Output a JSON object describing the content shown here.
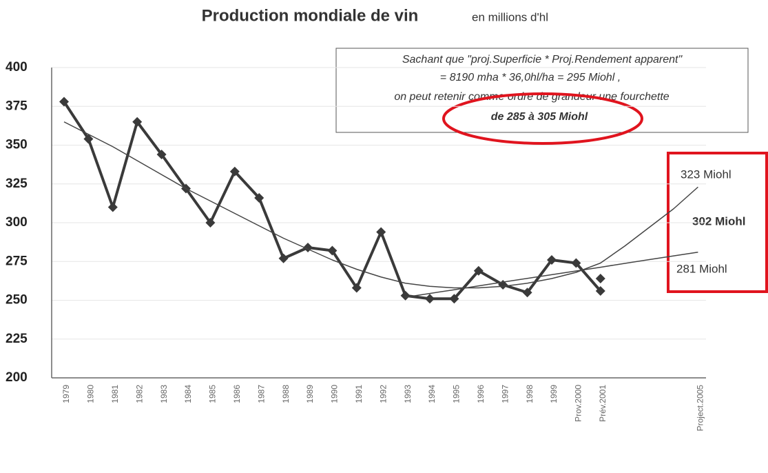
{
  "chart_data": {
    "type": "line",
    "title": "Production mondiale de vin",
    "subtitle": "en millions d'hl",
    "categories": [
      "1979",
      "1980",
      "1981",
      "1982",
      "1983",
      "1984",
      "1985",
      "1986",
      "1987",
      "1988",
      "1989",
      "1990",
      "1991",
      "1992",
      "1993",
      "1994",
      "1995",
      "1996",
      "1997",
      "1998",
      "1999",
      "Prov.2000",
      "Prév.2001",
      null,
      null,
      null,
      "Project.2005"
    ],
    "series": [
      {
        "color": "#3a3a3a",
        "marker": true,
        "width": 4,
        "values": [
          378,
          354,
          310,
          365,
          344,
          322,
          300,
          333,
          316,
          277,
          284,
          282,
          258,
          294,
          253,
          251,
          251,
          269,
          260,
          255,
          276,
          274,
          256,
          null,
          null,
          null,
          null
        ]
      },
      {
        "color": "#3a3a3a",
        "marker": true,
        "width": 4,
        "values": [
          null,
          null,
          null,
          null,
          null,
          null,
          null,
          null,
          null,
          null,
          null,
          null,
          null,
          null,
          null,
          null,
          null,
          null,
          null,
          null,
          null,
          null,
          264,
          null,
          null,
          null,
          null
        ]
      },
      {
        "color": "#444444",
        "marker": false,
        "width": 1.5,
        "values": [
          365,
          357,
          349,
          340,
          331,
          322,
          314,
          306,
          298,
          290,
          283,
          276,
          270,
          265,
          261,
          259,
          258,
          258,
          259,
          261,
          264,
          268,
          274,
          285,
          297,
          309,
          323
        ]
      },
      {
        "color": "#444444",
        "marker": false,
        "width": 1.5,
        "values": [
          null,
          null,
          null,
          null,
          null,
          null,
          null,
          null,
          null,
          null,
          null,
          null,
          null,
          null,
          252,
          254.4,
          256.8,
          259.3,
          261.7,
          264.1,
          266.5,
          268.9,
          271.3,
          273.8,
          276.2,
          278.6,
          281
        ]
      }
    ],
    "ylim": [
      200,
      400
    ],
    "yticks": [
      200,
      225,
      250,
      275,
      300,
      325,
      350,
      375,
      400
    ],
    "grid": true,
    "annotations": {
      "box": [
        "Sachant que \"proj.Superficie * Proj.Rendement apparent\"",
        "=  8190 mha * 36,0hl/ha = 295 Miohl ,",
        "on peut retenir comme ordre de grandeur une fourchette",
        "de 285 à 305 Miohl"
      ],
      "high": "323 Miohl",
      "mid": "302 Miohl",
      "low": "281 Miohl"
    }
  }
}
